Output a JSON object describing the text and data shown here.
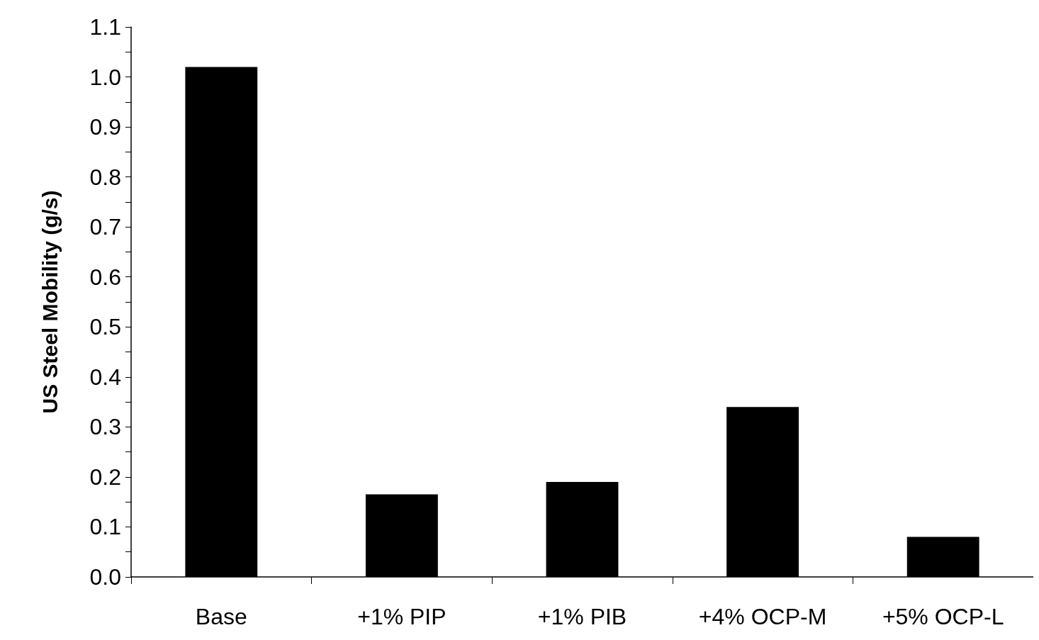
{
  "chart_data": {
    "type": "bar",
    "ylabel": "US Steel Mobility (g/s)",
    "categories": [
      "Base",
      "+1% PIP",
      "+1% PIB",
      "+4% OCP-M",
      "+5% OCP-L"
    ],
    "values": [
      1.02,
      0.165,
      0.19,
      0.34,
      0.08
    ],
    "color": "#000000",
    "ylim": [
      0,
      1.1
    ],
    "yticks": [
      {
        "value": 0,
        "label": "0.0"
      },
      {
        "value": 0.05,
        "label": null
      },
      {
        "value": 0.1,
        "label": "0.1"
      },
      {
        "value": 0.15,
        "label": null
      },
      {
        "value": 0.2,
        "label": "0.2"
      },
      {
        "value": 0.25,
        "label": null
      },
      {
        "value": 0.3,
        "label": "0.3"
      },
      {
        "value": 0.35,
        "label": null
      },
      {
        "value": 0.4,
        "label": "0.4"
      },
      {
        "value": 0.45,
        "label": null
      },
      {
        "value": 0.5,
        "label": "0.5"
      },
      {
        "value": 0.55,
        "label": null
      },
      {
        "value": 0.6,
        "label": "0.6"
      },
      {
        "value": 0.65,
        "label": null
      },
      {
        "value": 0.7,
        "label": "0.7"
      },
      {
        "value": 0.75,
        "label": null
      },
      {
        "value": 0.8,
        "label": "0.8"
      },
      {
        "value": 0.85,
        "label": null
      },
      {
        "value": 0.9,
        "label": "0.9"
      },
      {
        "value": 0.95,
        "label": null
      },
      {
        "value": 1,
        "label": "1.0"
      },
      {
        "value": 1.05,
        "label": null
      },
      {
        "value": 1.1,
        "label": "1.1"
      }
    ],
    "grid": false
  }
}
